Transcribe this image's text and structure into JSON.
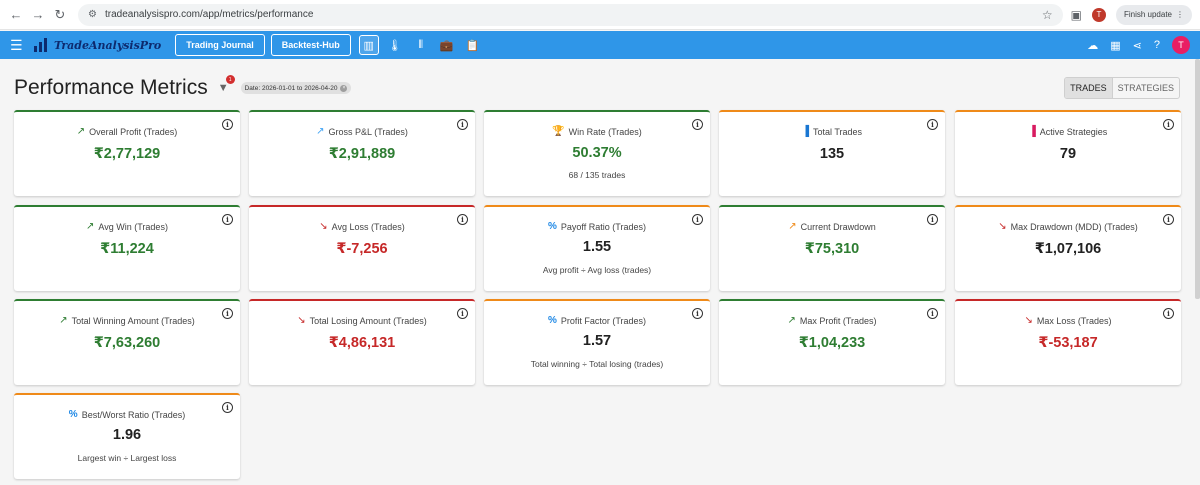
{
  "browser": {
    "url": "tradeanalysispro.com/app/metrics/performance",
    "profile_initial": "T",
    "update_label": "Finish update"
  },
  "app": {
    "logo_text": "TradeAnalysisPro",
    "buttons": [
      "Trading Journal",
      "Backtest-Hub"
    ],
    "avatar_initial": "T"
  },
  "header": {
    "title": "Performance Metrics",
    "filter_count": "1",
    "date_chip": "Date: 2026-01-01 to 2026-04-20",
    "toggle": {
      "trades": "TRADES",
      "strategies": "STRATEGIES"
    }
  },
  "cards": [
    {
      "title": "Overall Profit (Trades)",
      "value": "₹2,77,129",
      "sub": ""
    },
    {
      "title": "Gross P&L (Trades)",
      "value": "₹2,91,889",
      "sub": ""
    },
    {
      "title": "Win Rate (Trades)",
      "value": "50.37%",
      "sub": "68 / 135 trades"
    },
    {
      "title": "Total Trades",
      "value": "135",
      "sub": ""
    },
    {
      "title": "Active Strategies",
      "value": "79",
      "sub": ""
    },
    {
      "title": "Avg Win (Trades)",
      "value": "₹11,224",
      "sub": ""
    },
    {
      "title": "Avg Loss (Trades)",
      "value": "₹-7,256",
      "sub": ""
    },
    {
      "title": "Payoff Ratio (Trades)",
      "value": "1.55",
      "sub": "Avg profit ÷ Avg loss (trades)"
    },
    {
      "title": "Current Drawdown",
      "value": "₹75,310",
      "sub": ""
    },
    {
      "title": "Max Drawdown (MDD) (Trades)",
      "value": "₹1,07,106",
      "sub": ""
    },
    {
      "title": "Total Winning Amount (Trades)",
      "value": "₹7,63,260",
      "sub": ""
    },
    {
      "title": "Total Losing Amount (Trades)",
      "value": "₹4,86,131",
      "sub": ""
    },
    {
      "title": "Profit Factor (Trades)",
      "value": "1.57",
      "sub": "Total winning ÷ Total losing (trades)"
    },
    {
      "title": "Max Profit (Trades)",
      "value": "₹1,04,233",
      "sub": ""
    },
    {
      "title": "Max Loss (Trades)",
      "value": "₹-53,187",
      "sub": ""
    },
    {
      "title": "Best/Worst Ratio (Trades)",
      "value": "1.96",
      "sub": "Largest win ÷ Largest loss"
    }
  ]
}
